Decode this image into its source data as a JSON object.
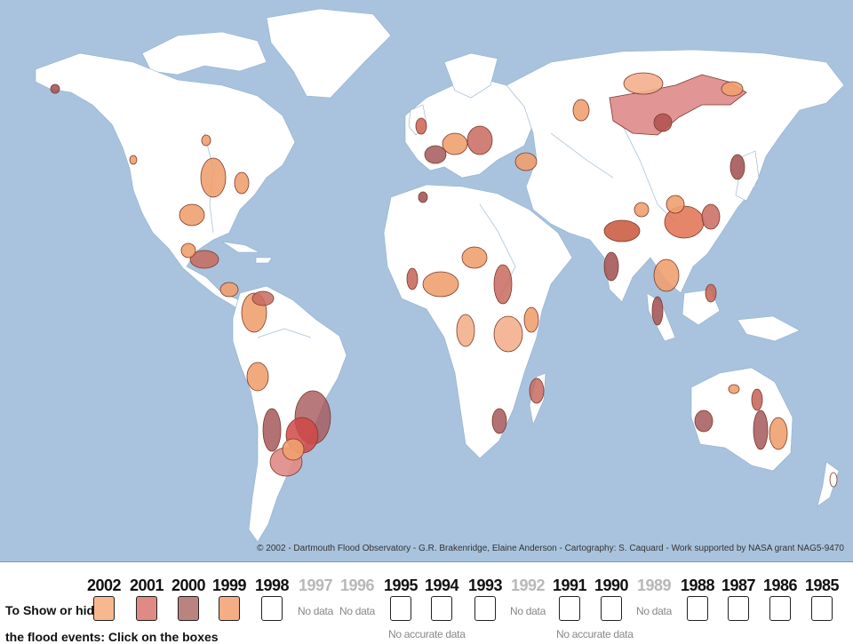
{
  "map": {
    "credit": "© 2002 - Dartmouth Flood Observatory - G.R. Brakenridge, Elaine Anderson - Cartography: S. Caquard - Work supported by NASA grant NAG5-9470",
    "colors": {
      "ocean": "#a9c3de",
      "land": "#ffffff",
      "rivers": "#b9cde0"
    }
  },
  "legend": {
    "instruction_line1": "To Show or hide",
    "instruction_line2": "the flood events: Click on the boxes",
    "years": [
      {
        "year": "2002",
        "status": "box",
        "color": "#f7b78f"
      },
      {
        "year": "2001",
        "status": "box",
        "color": "#e08a85"
      },
      {
        "year": "2000",
        "status": "box",
        "color": "#b98480"
      },
      {
        "year": "1999",
        "status": "box",
        "color": "#f5ad85"
      },
      {
        "year": "1998",
        "status": "box",
        "color": "#ffffff"
      },
      {
        "year": "1997",
        "status": "nodata",
        "label": "No data"
      },
      {
        "year": "1996",
        "status": "nodata",
        "label": "No data"
      },
      {
        "year": "1995",
        "status": "box",
        "color": "#ffffff"
      },
      {
        "year": "1994",
        "status": "box",
        "color": "#ffffff"
      },
      {
        "year": "1993",
        "status": "box",
        "color": "#ffffff"
      },
      {
        "year": "1992",
        "status": "nodata",
        "label": "No data"
      },
      {
        "year": "1991",
        "status": "box",
        "color": "#ffffff"
      },
      {
        "year": "1990",
        "status": "box",
        "color": "#ffffff"
      },
      {
        "year": "1989",
        "status": "nodata",
        "label": "No data"
      },
      {
        "year": "1988",
        "status": "box",
        "color": "#ffffff"
      },
      {
        "year": "1987",
        "status": "box",
        "color": "#ffffff"
      },
      {
        "year": "1986",
        "status": "box",
        "color": "#ffffff"
      },
      {
        "year": "1985",
        "status": "box",
        "color": "#ffffff"
      }
    ],
    "no_accurate_data_1": "No accurate data",
    "no_accurate_data_2": "No accurate data"
  }
}
